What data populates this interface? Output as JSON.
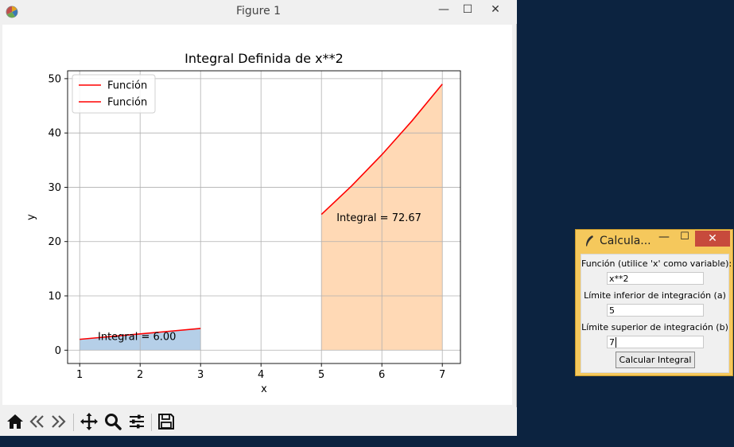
{
  "figure_window": {
    "title": "Figure 1",
    "controls": {
      "minimize": "—",
      "maximize": "☐",
      "close": "✕"
    }
  },
  "chart_data": {
    "type": "line",
    "title": "Integral Definida de x**2",
    "xlabel": "x",
    "ylabel": "y",
    "xlim": [
      0.8,
      7.3
    ],
    "ylim": [
      -2.45,
      51.45
    ],
    "xticks": [
      1,
      2,
      3,
      4,
      5,
      6,
      7
    ],
    "yticks": [
      0,
      10,
      20,
      30,
      40,
      50
    ],
    "grid": true,
    "legend_position": "top-left",
    "legend": [
      "Función",
      "Función"
    ],
    "series": [
      {
        "name": "Función",
        "color": "#ff0000",
        "x": [
          1,
          1.5,
          2,
          2.5,
          3
        ],
        "y": [
          2.0,
          2.5,
          3.0,
          3.5,
          4.0
        ],
        "fill_color": "#b5cfe8"
      },
      {
        "name": "Función",
        "color": "#ff0000",
        "x": [
          5,
          5.5,
          6,
          6.5,
          7
        ],
        "y": [
          25.0,
          30.25,
          36.0,
          42.25,
          49.0
        ],
        "fill_color": "#ffd9b5"
      }
    ],
    "annotations": [
      {
        "text": "Integral = 6.00",
        "x": 1.3,
        "y": 2.6
      },
      {
        "text": "Integral = 72.67",
        "x": 5.25,
        "y": 24.5
      }
    ]
  },
  "toolbar": {
    "icons": [
      "home-icon",
      "back-icon",
      "forward-icon",
      "pan-icon",
      "zoom-icon",
      "configure-icon",
      "save-icon"
    ]
  },
  "calculator": {
    "title": "Calcula...",
    "func_label": "Función (utilice 'x' como variable):",
    "func_value": "x**2",
    "a_label": "Límite inferior de integración (a)",
    "a_value": "5",
    "b_label": "Límite superior de integración (b)",
    "b_value": "7",
    "button_label": "Calcular Integral"
  }
}
